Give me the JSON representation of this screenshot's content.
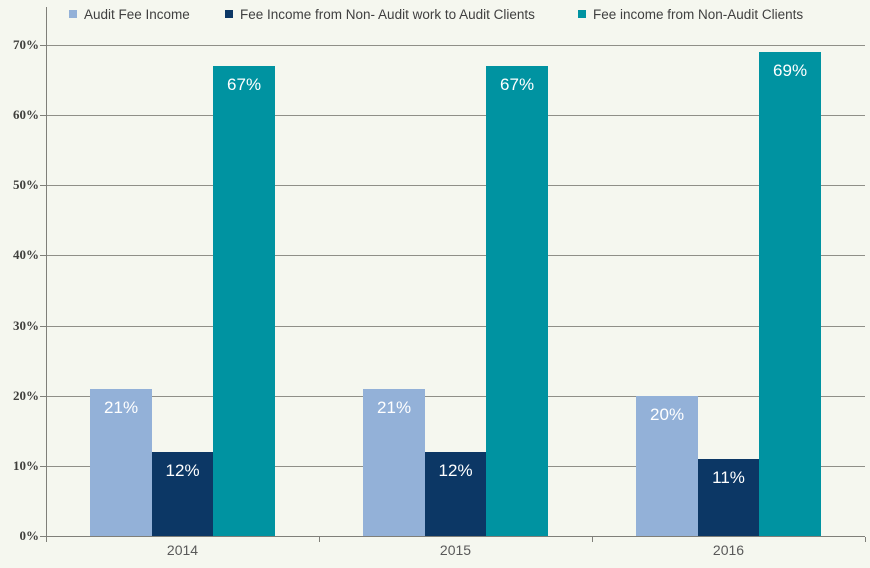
{
  "chart_data": {
    "type": "bar",
    "title": "",
    "xlabel": "",
    "ylabel": "",
    "categories": [
      "2014",
      "2015",
      "2016"
    ],
    "series": [
      {
        "name": "Audit Fee Income",
        "color": "#93B1D8",
        "values": [
          21,
          21,
          20
        ],
        "labels": [
          "21%",
          "21%",
          "20%"
        ]
      },
      {
        "name": "Fee Income from Non- Audit work to Audit Clients",
        "color": "#0C3765",
        "values": [
          12,
          12,
          11
        ],
        "labels": [
          "12%",
          "12%",
          "11%"
        ]
      },
      {
        "name": "Fee income from Non-Audit Clients",
        "color": "#0093A1",
        "values": [
          67,
          67,
          69
        ],
        "labels": [
          "67%",
          "67%",
          "69%"
        ]
      }
    ],
    "ylim": [
      0,
      70
    ],
    "yticks": [
      0,
      10,
      20,
      30,
      40,
      50,
      60,
      70
    ],
    "ytick_labels": [
      "0%",
      "10%",
      "20%",
      "30%",
      "40%",
      "50%",
      "60%",
      "70%"
    ],
    "grid": true,
    "legend_position": "top",
    "style": {
      "background": "#F5F7EF",
      "grid_color": "#8F8F88",
      "axis_color": "#7F7F79",
      "ytick_label_color": "#3F3F3C",
      "category_label_color": "#595959",
      "legend_text_color": "#404040",
      "value_label_color": "#FFFFFF"
    }
  }
}
